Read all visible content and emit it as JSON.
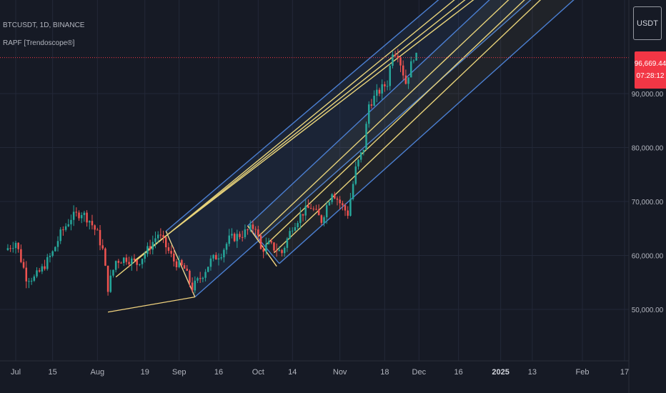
{
  "header": {
    "symbol_line": "BTCUSDT, 1D, BINANCE",
    "indicator_line": "RAPF [Trendoscope®]"
  },
  "price_scale": {
    "currency": "USDT",
    "last_price": "96,669.44",
    "countdown": "07:28:12"
  },
  "colors": {
    "background": "#161a25",
    "up_candle": "#26a69a",
    "down_candle": "#ef5350",
    "channel_blue": "#4b7fd1",
    "channel_yellow": "#e8d37a",
    "pitchfork_handle": "#f0d27e",
    "price_line": "#f23645",
    "grid": "#232838",
    "axis_text": "#b2b5be"
  },
  "chart_data": {
    "type": "candlestick",
    "y_ticks": [
      "50,000.00",
      "60,000.00",
      "70,000.00",
      "80,000.00",
      "90,000.00"
    ],
    "y_tick_values": [
      50000,
      60000,
      70000,
      80000,
      90000
    ],
    "ylim": [
      41000,
      109000
    ],
    "x_ticks": [
      "Jul",
      "15",
      "Aug",
      "19",
      "Sep",
      "16",
      "Oct",
      "14",
      "Nov",
      "18",
      "Dec",
      "16",
      "2025",
      "13",
      "Feb",
      "17"
    ],
    "x_tick_dates": [
      "2024-07-01",
      "2024-07-15",
      "2024-08-01",
      "2024-08-19",
      "2024-09-01",
      "2024-09-16",
      "2024-10-01",
      "2024-10-14",
      "2024-11-01",
      "2024-11-18",
      "2024-12-01",
      "2024-12-16",
      "2025-01-01",
      "2025-01-13",
      "2025-02-01",
      "2025-02-17"
    ],
    "bold_x_ticks": [
      "2025"
    ],
    "last_price": 96669.44,
    "price_series": [
      [
        "2024-06-27",
        61000
      ],
      [
        "2024-07-01",
        62500
      ],
      [
        "2024-07-05",
        56000
      ],
      [
        "2024-07-08",
        55800
      ],
      [
        "2024-07-11",
        57500
      ],
      [
        "2024-07-15",
        60500
      ],
      [
        "2024-07-18",
        64000
      ],
      [
        "2024-07-22",
        67000
      ],
      [
        "2024-07-26",
        68000
      ],
      [
        "2024-07-29",
        66500
      ],
      [
        "2024-08-01",
        64000
      ],
      [
        "2024-08-03",
        61000
      ],
      [
        "2024-08-05",
        54000
      ],
      [
        "2024-08-08",
        59000
      ],
      [
        "2024-08-12",
        59500
      ],
      [
        "2024-08-16",
        58500
      ],
      [
        "2024-08-20",
        61000
      ],
      [
        "2024-08-24",
        64000
      ],
      [
        "2024-08-26",
        62500
      ],
      [
        "2024-08-30",
        59000
      ],
      [
        "2024-09-03",
        57500
      ],
      [
        "2024-09-06",
        54000
      ],
      [
        "2024-09-09",
        55800
      ],
      [
        "2024-09-13",
        59000
      ],
      [
        "2024-09-17",
        60500
      ],
      [
        "2024-09-20",
        63000
      ],
      [
        "2024-09-25",
        64000
      ],
      [
        "2024-09-30",
        65500
      ],
      [
        "2024-10-02",
        61000
      ],
      [
        "2024-10-05",
        62000
      ],
      [
        "2024-10-10",
        60500
      ],
      [
        "2024-10-14",
        65500
      ],
      [
        "2024-10-18",
        68000
      ],
      [
        "2024-10-21",
        69000
      ],
      [
        "2024-10-25",
        66500
      ],
      [
        "2024-10-29",
        72000
      ],
      [
        "2024-11-02",
        69000
      ],
      [
        "2024-11-04",
        67800
      ],
      [
        "2024-11-07",
        76000
      ],
      [
        "2024-11-10",
        80000
      ],
      [
        "2024-11-12",
        88000
      ],
      [
        "2024-11-16",
        90500
      ],
      [
        "2024-11-19",
        92000
      ],
      [
        "2024-11-21",
        98000
      ],
      [
        "2024-11-23",
        97500
      ],
      [
        "2024-11-26",
        92000
      ],
      [
        "2024-11-29",
        97000
      ],
      [
        "2024-11-30",
        96669
      ]
    ],
    "pitchforks": [
      {
        "handle": [
          [
            "2024-08-05",
            49500
          ],
          [
            "2024-09-07",
            52300
          ]
        ],
        "upper_tine": [
          [
            "2024-08-27",
            64500
          ],
          [
            "2025-01-03",
            118000
          ]
        ],
        "lower_tine": [
          [
            "2024-09-07",
            52300
          ],
          [
            "2025-02-06",
            118000
          ]
        ],
        "inner_lines": [
          [
            [
              "2024-08-08",
              56000
            ],
            [
              "2025-01-10",
              118000
            ]
          ],
          [
            [
              "2024-08-15",
              59000
            ],
            [
              "2025-01-15",
              118000
            ]
          ],
          [
            [
              "2024-08-20",
              61000
            ],
            [
              "2025-01-19",
              118000
            ]
          ]
        ]
      },
      {
        "handle": [
          [
            "2024-09-27",
            65500
          ],
          [
            "2024-10-08",
            58000
          ]
        ],
        "upper_tine": [
          [
            "2024-09-27",
            65500
          ],
          [
            "2025-01-20",
            118000
          ]
        ],
        "lower_tine": [
          [
            "2024-10-09",
            58500
          ],
          [
            "2025-02-22",
            118000
          ]
        ],
        "inner_lines": [
          [
            [
              "2024-10-01",
              63500
            ],
            [
              "2025-01-27",
              118000
            ]
          ],
          [
            [
              "2024-10-04",
              62000
            ],
            [
              "2025-02-02",
              118000
            ]
          ],
          [
            [
              "2024-10-07",
              60500
            ],
            [
              "2025-02-08",
              118000
            ]
          ]
        ]
      }
    ]
  }
}
